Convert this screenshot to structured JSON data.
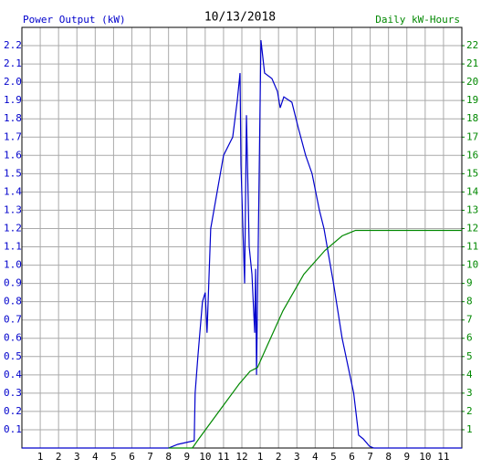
{
  "chart_data": {
    "type": "line",
    "title": "10/13/2018",
    "y_label": "Power Output (kW)",
    "y2_label": "Daily kW-Hours",
    "xlim": [
      0,
      24
    ],
    "xticks": [
      1,
      2,
      3,
      4,
      5,
      6,
      7,
      8,
      9,
      10,
      11,
      12,
      {
        "value": 13,
        "label": "1"
      },
      {
        "value": 14,
        "label": "2"
      },
      {
        "value": 15,
        "label": "3"
      },
      {
        "value": 16,
        "label": "4"
      },
      {
        "value": 17,
        "label": "5"
      },
      {
        "value": 18,
        "label": "6"
      },
      {
        "value": 19,
        "label": "7"
      },
      {
        "value": 20,
        "label": "8"
      },
      {
        "value": 21,
        "label": "9"
      },
      {
        "value": 22,
        "label": "10"
      },
      {
        "value": 23,
        "label": "11"
      }
    ],
    "ylim": [
      0,
      2.3
    ],
    "yticks": [
      0.1,
      0.2,
      0.3,
      0.4,
      0.5,
      0.6,
      0.7,
      0.8,
      0.9,
      {
        "value": 1,
        "label": "1.0"
      },
      1.1,
      1.2,
      1.3,
      1.4,
      1.5,
      1.6,
      1.7,
      1.8,
      1.9,
      {
        "value": 2,
        "label": "2.0"
      },
      2.1,
      2.2
    ],
    "y2lim": [
      0,
      23
    ],
    "y2ticks": [
      1,
      2,
      3,
      4,
      5,
      6,
      7,
      8,
      9,
      10,
      11,
      12,
      13,
      14,
      15,
      16,
      17,
      18,
      19,
      20,
      21,
      22
    ],
    "grid": true,
    "series": [
      {
        "name": "Power Output (kW)",
        "color": "#0000cc",
        "axis": "y",
        "x": [
          0,
          8.0,
          8.5,
          9.4,
          9.45,
          9.6,
          9.85,
          10.0,
          10.1,
          10.3,
          10.65,
          11.0,
          11.5,
          11.75,
          11.9,
          11.95,
          12.15,
          12.25,
          12.4,
          12.55,
          12.7,
          12.75,
          12.8,
          13.04,
          13.24,
          13.64,
          13.94,
          14.09,
          14.29,
          14.73,
          15.08,
          15.48,
          15.83,
          16.23,
          16.48,
          17.0,
          17.47,
          18.1,
          18.37,
          18.62,
          18.96,
          19.2,
          24
        ],
        "values": [
          0,
          0,
          0.02,
          0.04,
          0.3,
          0.5,
          0.8,
          0.85,
          0.63,
          1.2,
          1.4,
          1.6,
          1.7,
          1.9,
          2.05,
          1.55,
          0.9,
          1.82,
          1.1,
          0.95,
          0.63,
          0.98,
          0.4,
          2.23,
          2.05,
          2.02,
          1.95,
          1.86,
          1.92,
          1.89,
          1.75,
          1.6,
          1.5,
          1.3,
          1.2,
          0.9,
          0.6,
          0.3,
          0.07,
          0.05,
          0.01,
          0,
          0
        ]
      },
      {
        "name": "Daily kW-Hours",
        "color": "#008800",
        "axis": "y2",
        "x": [
          8.0,
          9.3,
          9.65,
          10.75,
          11.85,
          12.45,
          12.85,
          13.34,
          14.24,
          15.38,
          16.53,
          17.47,
          18.2,
          24
        ],
        "values": [
          0,
          0,
          0.5,
          2,
          3.5,
          4.2,
          4.4,
          5.5,
          7.5,
          9.5,
          10.8,
          11.6,
          11.9,
          11.9
        ]
      }
    ]
  }
}
